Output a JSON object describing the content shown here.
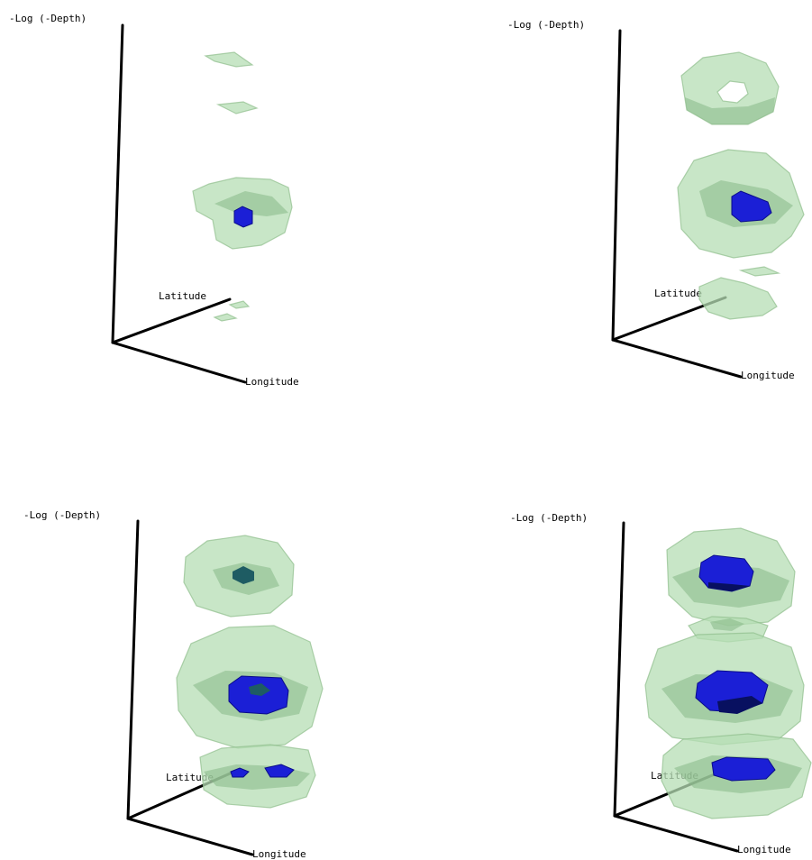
{
  "panels": [
    {
      "id": "top-left",
      "axes": {
        "vertical": "-Log (-Depth)",
        "lat": "Latitude",
        "lon": "Longitude"
      }
    },
    {
      "id": "top-right",
      "axes": {
        "vertical": "-Log (-Depth)",
        "lat": "Latitude",
        "lon": "Longitude"
      }
    },
    {
      "id": "bottom-left",
      "axes": {
        "vertical": "-Log (-Depth)",
        "lat": "Latitude",
        "lon": "Longitude"
      }
    },
    {
      "id": "bottom-right",
      "axes": {
        "vertical": "-Log (-Depth)",
        "lat": "Latitude",
        "lon": "Longitude"
      }
    }
  ],
  "colors": {
    "shell": "#b6ddb4",
    "core": "#1b1fd6",
    "axis": "#000000"
  }
}
